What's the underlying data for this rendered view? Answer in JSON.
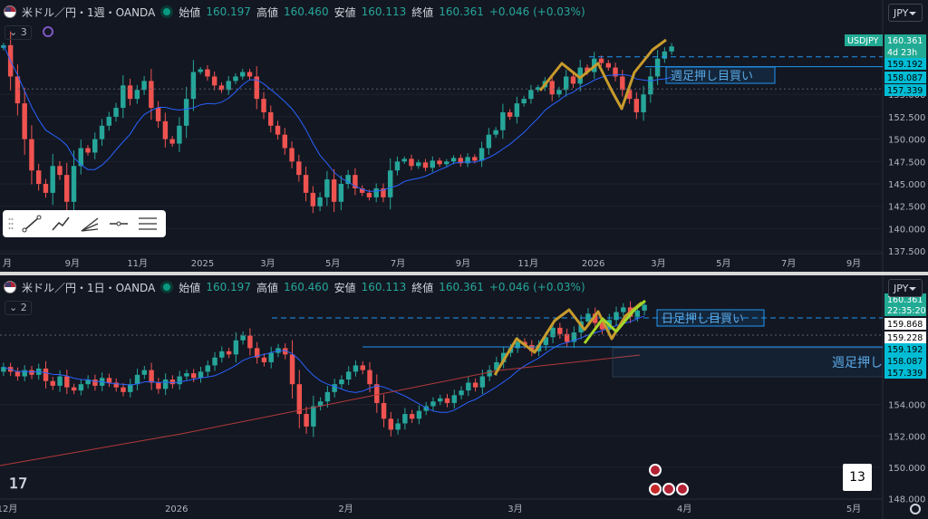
{
  "colors": {
    "up": "#26a69a",
    "down": "#ef5350",
    "ma": "#2962ff",
    "accent": "#22ab94",
    "annot": "#2196f3",
    "sma_long": "#b33a3a",
    "bg": "#131722"
  },
  "top": {
    "header": {
      "symbol": "米ドル／円・1週・OANDA",
      "open_label": "始値",
      "open": "160.197",
      "high_label": "高値",
      "high": "160.460",
      "low_label": "安値",
      "low": "160.113",
      "close_label": "終値",
      "close": "160.361",
      "change": "+0.046 (+0.03%)"
    },
    "indicator_count": "3",
    "currency": "JPY",
    "annotation": "週足押し目買い",
    "price_tags": {
      "symbol": "USDJPY",
      "last": "160.361",
      "countdown": "4d 23h",
      "p1": "159.192",
      "p2": "158.087",
      "p3": "157.339"
    },
    "y_ticks": [
      "155.000",
      "152.500",
      "150.000",
      "147.500",
      "145.000",
      "142.500",
      "140.000",
      "137.500"
    ],
    "x_ticks": [
      "月",
      "9月",
      "11月",
      "2025",
      "3月",
      "5月",
      "7月",
      "9月",
      "11月",
      "2026",
      "3月",
      "5月",
      "7月",
      "9月"
    ]
  },
  "bottom": {
    "header": {
      "symbol": "米ドル／円・1日・OANDA",
      "open_label": "始値",
      "open": "160.197",
      "high_label": "高値",
      "high": "160.460",
      "low_label": "安値",
      "low": "160.113",
      "close_label": "終値",
      "close": "160.361",
      "change": "+0.046 (+0.03%)"
    },
    "indicator_count": "2",
    "currency": "JPY",
    "annotation_daily": "日足押し目買い",
    "annotation_weekly": "週足押し",
    "price_tags": {
      "last": "160.361",
      "countdown": "22:35:20",
      "p1": "159.868",
      "p2": "159.228",
      "p3": "159.192",
      "p4": "158.087",
      "p5": "157.339"
    },
    "y_ticks": [
      "154.000",
      "152.000",
      "150.000",
      "148.000"
    ],
    "x_ticks": [
      "12月",
      "2026",
      "2月",
      "3月",
      "4月",
      "5月"
    ],
    "badge": "13"
  },
  "chart_data": [
    {
      "type": "candlestick",
      "title": "米ドル／円・1週・OANDA",
      "timeframe": "1W",
      "ylim": [
        136.5,
        161.5
      ],
      "ohlc": {
        "open": 160.197,
        "high": 160.46,
        "low": 160.113,
        "close": 160.361
      },
      "x_ticks": [
        "月",
        "9月",
        "11月",
        "2025",
        "3月",
        "5月",
        "7月",
        "9月",
        "11月",
        "2026",
        "3月",
        "5月",
        "7月",
        "9月"
      ],
      "y_ticks": [
        155,
        152.5,
        150,
        147.5,
        145,
        142.5,
        140,
        137.5
      ],
      "closes": [
        160.5,
        157.0,
        154.0,
        150.0,
        146.5,
        145.0,
        144.0,
        147.0,
        146.0,
        143.0,
        147.0,
        149.0,
        148.5,
        150.0,
        151.5,
        152.5,
        153.5,
        156.0,
        154.5,
        155.5,
        156.5,
        153.5,
        152.0,
        150.0,
        149.5,
        151.5,
        154.5,
        157.5,
        157.8,
        157.0,
        156.0,
        155.5,
        156.5,
        157.0,
        157.5,
        157.0,
        154.5,
        153.0,
        151.5,
        150.5,
        149.0,
        147.5,
        146.0,
        144.0,
        142.5,
        143.5,
        145.5,
        143.0,
        145.0,
        146.0,
        144.5,
        144.0,
        143.5,
        144.5,
        143.5,
        146.5,
        147.5,
        147.8,
        147.0,
        147.4,
        146.8,
        147.6,
        147.2,
        147.5,
        147.9,
        147.3,
        148.0,
        147.6,
        149.0,
        150.5,
        151.0,
        153.0,
        152.5,
        154.0,
        154.5,
        155.5,
        155.8,
        156.5,
        155.0,
        155.5,
        157.0,
        156.2,
        158.0,
        157.5,
        159.0,
        158.5,
        158.0,
        157.0,
        155.5,
        154.5,
        153.0,
        155.0,
        157.0,
        159.0,
        159.8,
        160.36
      ]
    },
    {
      "type": "candlestick",
      "title": "米ドル／円・1日・OANDA",
      "timeframe": "1D",
      "ylim": [
        147.8,
        160.8
      ],
      "ohlc": {
        "open": 160.197,
        "high": 160.46,
        "low": 160.113,
        "close": 160.361
      },
      "x_ticks": [
        "12月",
        "2026",
        "2月",
        "3月",
        "4月",
        "5月"
      ],
      "y_ticks": [
        154,
        152,
        150,
        148
      ],
      "closes": [
        156.4,
        156.1,
        155.8,
        156.2,
        155.9,
        156.3,
        155.5,
        155.2,
        155.8,
        155.1,
        154.9,
        155.3,
        155.6,
        155.2,
        155.7,
        155.4,
        155.1,
        154.8,
        155.3,
        155.9,
        156.2,
        155.4,
        155.0,
        155.6,
        155.3,
        155.8,
        156.0,
        155.7,
        156.1,
        156.5,
        157.0,
        157.4,
        157.2,
        158.1,
        158.4,
        157.6,
        157.0,
        156.7,
        157.3,
        157.6,
        157.2,
        155.3,
        153.4,
        152.6,
        153.9,
        154.2,
        154.8,
        155.3,
        155.6,
        156.1,
        156.5,
        156.2,
        155.3,
        154.1,
        153.1,
        152.4,
        152.8,
        153.4,
        153.1,
        153.6,
        153.9,
        154.2,
        154.4,
        154.1,
        154.6,
        154.9,
        155.4,
        155.1,
        155.8,
        156.2,
        156.7,
        157.3,
        157.6,
        158.0,
        157.8,
        157.4,
        157.8,
        158.3,
        158.9,
        158.5,
        158.0,
        158.6,
        159.3,
        159.8,
        159.2,
        158.8,
        159.4,
        159.9,
        160.2,
        159.6,
        160.0,
        160.36
      ]
    }
  ]
}
